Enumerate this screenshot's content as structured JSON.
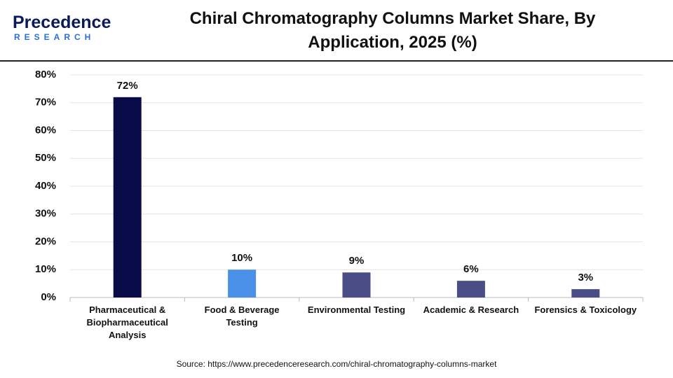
{
  "brand": {
    "name": "Precedence",
    "tagline": "RESEARCH"
  },
  "chart_data": {
    "type": "bar",
    "title": "Chiral Chromatography Columns Market Share, By Application, 2025 (%)",
    "categories": [
      "Pharmaceutical & Biopharmaceutical Analysis",
      "Food & Beverage Testing",
      "Environmental Testing",
      "Academic & Research",
      "Forensics & Toxicology"
    ],
    "values": [
      72,
      10,
      9,
      6,
      3
    ],
    "value_labels": [
      "72%",
      "10%",
      "9%",
      "6%",
      "3%"
    ],
    "colors": [
      "#0a0c4a",
      "#4a90e8",
      "#4a4d86",
      "#4a4d86",
      "#4a4d86"
    ],
    "ylim": [
      0,
      80
    ],
    "yticks": [
      {
        "value": 0,
        "label": "0%"
      },
      {
        "value": 10,
        "label": "10%"
      },
      {
        "value": 20,
        "label": "20%"
      },
      {
        "value": 30,
        "label": "30%"
      },
      {
        "value": 40,
        "label": "40%"
      },
      {
        "value": 50,
        "label": "50%"
      },
      {
        "value": 60,
        "label": "60%"
      },
      {
        "value": 70,
        "label": "70%"
      },
      {
        "value": 80,
        "label": "80%"
      }
    ],
    "grid": true,
    "source": "Source: https://www.precedenceresearch.com/chiral-chromatography-columns-market"
  }
}
